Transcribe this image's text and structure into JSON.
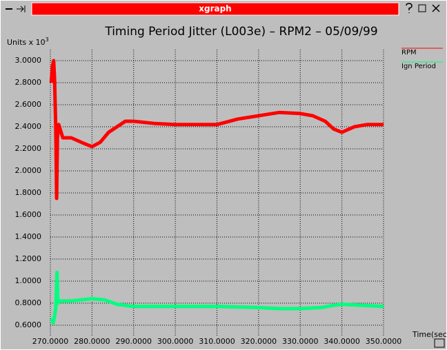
{
  "window": {
    "title": "xgraph"
  },
  "chart_data": {
    "type": "line",
    "title": "Timing Period Jitter (L003e) – RPM2 – 05/09/99",
    "ylabel": "Units x 10",
    "ylabel_superscript": "3",
    "xlabel": "Time(sec)",
    "xlim": [
      270,
      350
    ],
    "ylim": [
      0.5,
      3.1
    ],
    "xticks": [
      {
        "value": 270,
        "label": "270.0000"
      },
      {
        "value": 280,
        "label": "280.0000"
      },
      {
        "value": 290,
        "label": "290.0000"
      },
      {
        "value": 300,
        "label": "300.0000"
      },
      {
        "value": 310,
        "label": "310.0000"
      },
      {
        "value": 320,
        "label": "320.0000"
      },
      {
        "value": 330,
        "label": "330.0000"
      },
      {
        "value": 340,
        "label": "340.0000"
      },
      {
        "value": 350,
        "label": "350.0000"
      }
    ],
    "yticks": [
      {
        "value": 0.6,
        "label": "0.6000"
      },
      {
        "value": 0.8,
        "label": "0.8000"
      },
      {
        "value": 1.0,
        "label": "1.0000"
      },
      {
        "value": 1.2,
        "label": "1.2000"
      },
      {
        "value": 1.4,
        "label": "1.4000"
      },
      {
        "value": 1.6,
        "label": "1.6000"
      },
      {
        "value": 1.8,
        "label": "1.8000"
      },
      {
        "value": 2.0,
        "label": "2.0000"
      },
      {
        "value": 2.2,
        "label": "2.2000"
      },
      {
        "value": 2.4,
        "label": "2.4000"
      },
      {
        "value": 2.6,
        "label": "2.6000"
      },
      {
        "value": 2.8,
        "label": "2.8000"
      },
      {
        "value": 3.0,
        "label": "3.0000"
      }
    ],
    "grid": true,
    "legend": "right",
    "series": [
      {
        "name": "RPM",
        "color": "#ff0000",
        "x": [
          270.2,
          270.5,
          270.8,
          271.0,
          271.3,
          271.5,
          271.7,
          272,
          273,
          275,
          278,
          280,
          282,
          284,
          286,
          288,
          290,
          295,
          300,
          305,
          310,
          315,
          320,
          325,
          330,
          333,
          336,
          338,
          340,
          343,
          346,
          350
        ],
        "values": [
          2.8,
          2.95,
          3.0,
          2.85,
          2.4,
          1.75,
          2.3,
          2.42,
          2.3,
          2.3,
          2.25,
          2.22,
          2.26,
          2.35,
          2.4,
          2.45,
          2.45,
          2.43,
          2.42,
          2.42,
          2.42,
          2.47,
          2.5,
          2.53,
          2.52,
          2.5,
          2.45,
          2.38,
          2.35,
          2.4,
          2.42,
          2.42
        ]
      },
      {
        "name": "Ign Period",
        "color": "#00ff7f",
        "x": [
          270.2,
          270.7,
          271.0,
          271.3,
          271.6,
          271.8,
          272.5,
          275,
          280,
          283,
          286,
          290,
          300,
          310,
          320,
          325,
          330,
          335,
          338,
          340,
          345,
          350
        ],
        "values": [
          0.66,
          0.62,
          0.68,
          0.75,
          1.08,
          0.8,
          0.82,
          0.82,
          0.84,
          0.83,
          0.79,
          0.77,
          0.77,
          0.77,
          0.76,
          0.75,
          0.75,
          0.76,
          0.78,
          0.79,
          0.78,
          0.77
        ]
      }
    ]
  }
}
